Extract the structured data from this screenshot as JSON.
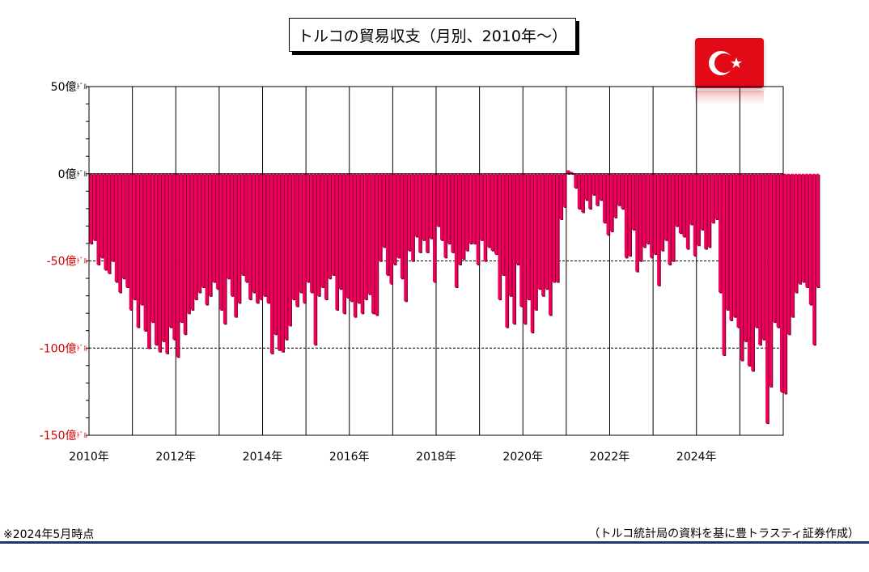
{
  "title": "トルコの貿易収支（月別、2010年～）",
  "footnote_left": "※2024年5月時点",
  "footnote_right": "（トルコ統計局の資料を基に豊トラスティ証券作成）",
  "colors": {
    "bar": "#f0005a",
    "bar_shadow": "#7a0030",
    "flag_red": "#e30a17"
  },
  "flag_icon": "turkey-flag-icon",
  "chart_data": {
    "type": "bar",
    "unit_label": "億ﾄﾞﾙ",
    "y_ticks": [
      {
        "value": 50,
        "label": "50億ﾄﾞﾙ",
        "color": "#000000"
      },
      {
        "value": 0,
        "label": "0億ﾄﾞﾙ",
        "color": "#000000"
      },
      {
        "value": -50,
        "label": "-50億ﾄﾞﾙ",
        "color": "#d40000"
      },
      {
        "value": -100,
        "label": "-100億ﾄﾞﾙ",
        "color": "#d40000"
      },
      {
        "value": -150,
        "label": "-150億ﾄﾞﾙ",
        "color": "#d40000"
      }
    ],
    "ylim": [
      -150,
      50
    ],
    "x_range": [
      "2010-01",
      "2025-12"
    ],
    "x_ticks": [
      "2010年",
      "2012年",
      "2014年",
      "2016年",
      "2018年",
      "2020年",
      "2022年",
      "2024年"
    ],
    "x_tick_years": [
      2010,
      2012,
      2014,
      2016,
      2018,
      2020,
      2022,
      2024
    ],
    "reference_lines": [
      -50,
      -100
    ],
    "start_month": "2010-01",
    "values": [
      -40,
      -38,
      -52,
      -48,
      -55,
      -57,
      -50,
      -62,
      -68,
      -60,
      -65,
      -78,
      -72,
      -88,
      -75,
      -90,
      -100,
      -85,
      -98,
      -102,
      -96,
      -103,
      -88,
      -95,
      -105,
      -85,
      -92,
      -80,
      -78,
      -72,
      -68,
      -65,
      -75,
      -70,
      -62,
      -66,
      -78,
      -86,
      -60,
      -70,
      -82,
      -74,
      -58,
      -62,
      -72,
      -68,
      -74,
      -72,
      -70,
      -74,
      -103,
      -92,
      -101,
      -102,
      -95,
      -87,
      -72,
      -76,
      -68,
      -74,
      -62,
      -68,
      -98,
      -70,
      -65,
      -72,
      -60,
      -58,
      -78,
      -66,
      -80,
      -71,
      -73,
      -82,
      -74,
      -80,
      -72,
      -69,
      -80,
      -81,
      -50,
      -42,
      -58,
      -63,
      -52,
      -48,
      -60,
      -73,
      -44,
      -50,
      -36,
      -45,
      -38,
      -45,
      -37,
      -62,
      -30,
      -38,
      -48,
      -40,
      -45,
      -65,
      -52,
      -49,
      -44,
      -40,
      -40,
      -52,
      -38,
      -50,
      -42,
      -44,
      -46,
      -72,
      -58,
      -88,
      -70,
      -86,
      -52,
      -76,
      -86,
      -72,
      -91,
      -78,
      -66,
      -70,
      -66,
      -81,
      -62,
      -62,
      -26,
      -19,
      2,
      1,
      -8,
      -20,
      -22,
      -15,
      -20,
      -12,
      -18,
      -15,
      -28,
      -35,
      -33,
      -25,
      -18,
      -20,
      -48,
      -47,
      -32,
      -56,
      -50,
      -42,
      -40,
      -48,
      -46,
      -64,
      -44,
      -38,
      -52,
      -50,
      -30,
      -34,
      -36,
      -43,
      -29,
      -47,
      -41,
      -32,
      -43,
      -42,
      -28,
      -26,
      -68,
      -104,
      -78,
      -84,
      -82,
      -88,
      -107,
      -96,
      -110,
      -113,
      -88,
      -98,
      -95,
      -143,
      -122,
      -85,
      -88,
      -125,
      -126,
      -92,
      -82,
      -68,
      -63,
      -62,
      -65,
      -75,
      -98,
      -65
    ]
  }
}
